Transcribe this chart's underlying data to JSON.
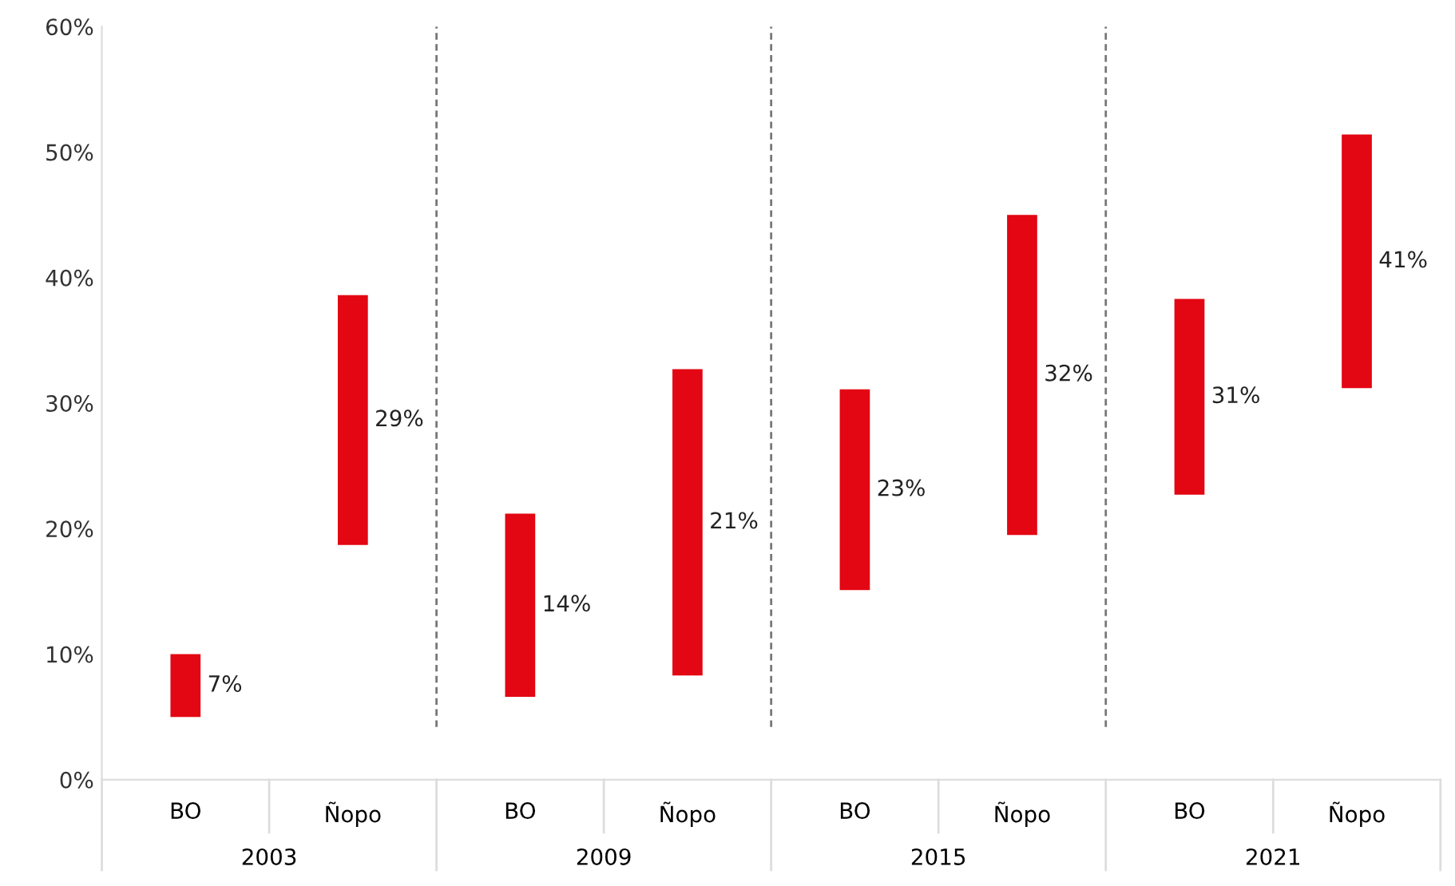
{
  "chart_data": {
    "type": "bar",
    "categories": [
      "BO",
      "Ñopo",
      "BO",
      "Ñopo",
      "BO",
      "Ñopo",
      "BO",
      "Ñopo"
    ],
    "base": [
      5.0,
      18.7,
      6.6,
      8.3,
      15.1,
      19.5,
      22.7,
      31.2
    ],
    "values": [
      5.0,
      19.9,
      14.6,
      24.4,
      16.0,
      25.5,
      15.6,
      20.2
    ],
    "color": "#e30613",
    "ylim": [
      0,
      60
    ],
    "yticks": [
      {
        "value": 0,
        "label": "0%"
      },
      {
        "value": 10,
        "label": "10%"
      },
      {
        "value": 20,
        "label": "20%"
      },
      {
        "value": 30,
        "label": "30%"
      },
      {
        "value": 40,
        "label": "40%"
      },
      {
        "value": 50,
        "label": "50%"
      },
      {
        "value": 60,
        "label": "60%"
      }
    ],
    "grid": false,
    "annotations": [
      "7%",
      "29%",
      "14%",
      "21%",
      "23%",
      "32%",
      "31%",
      "41%",
      "2003",
      "2009",
      "2015",
      "2021"
    ]
  }
}
